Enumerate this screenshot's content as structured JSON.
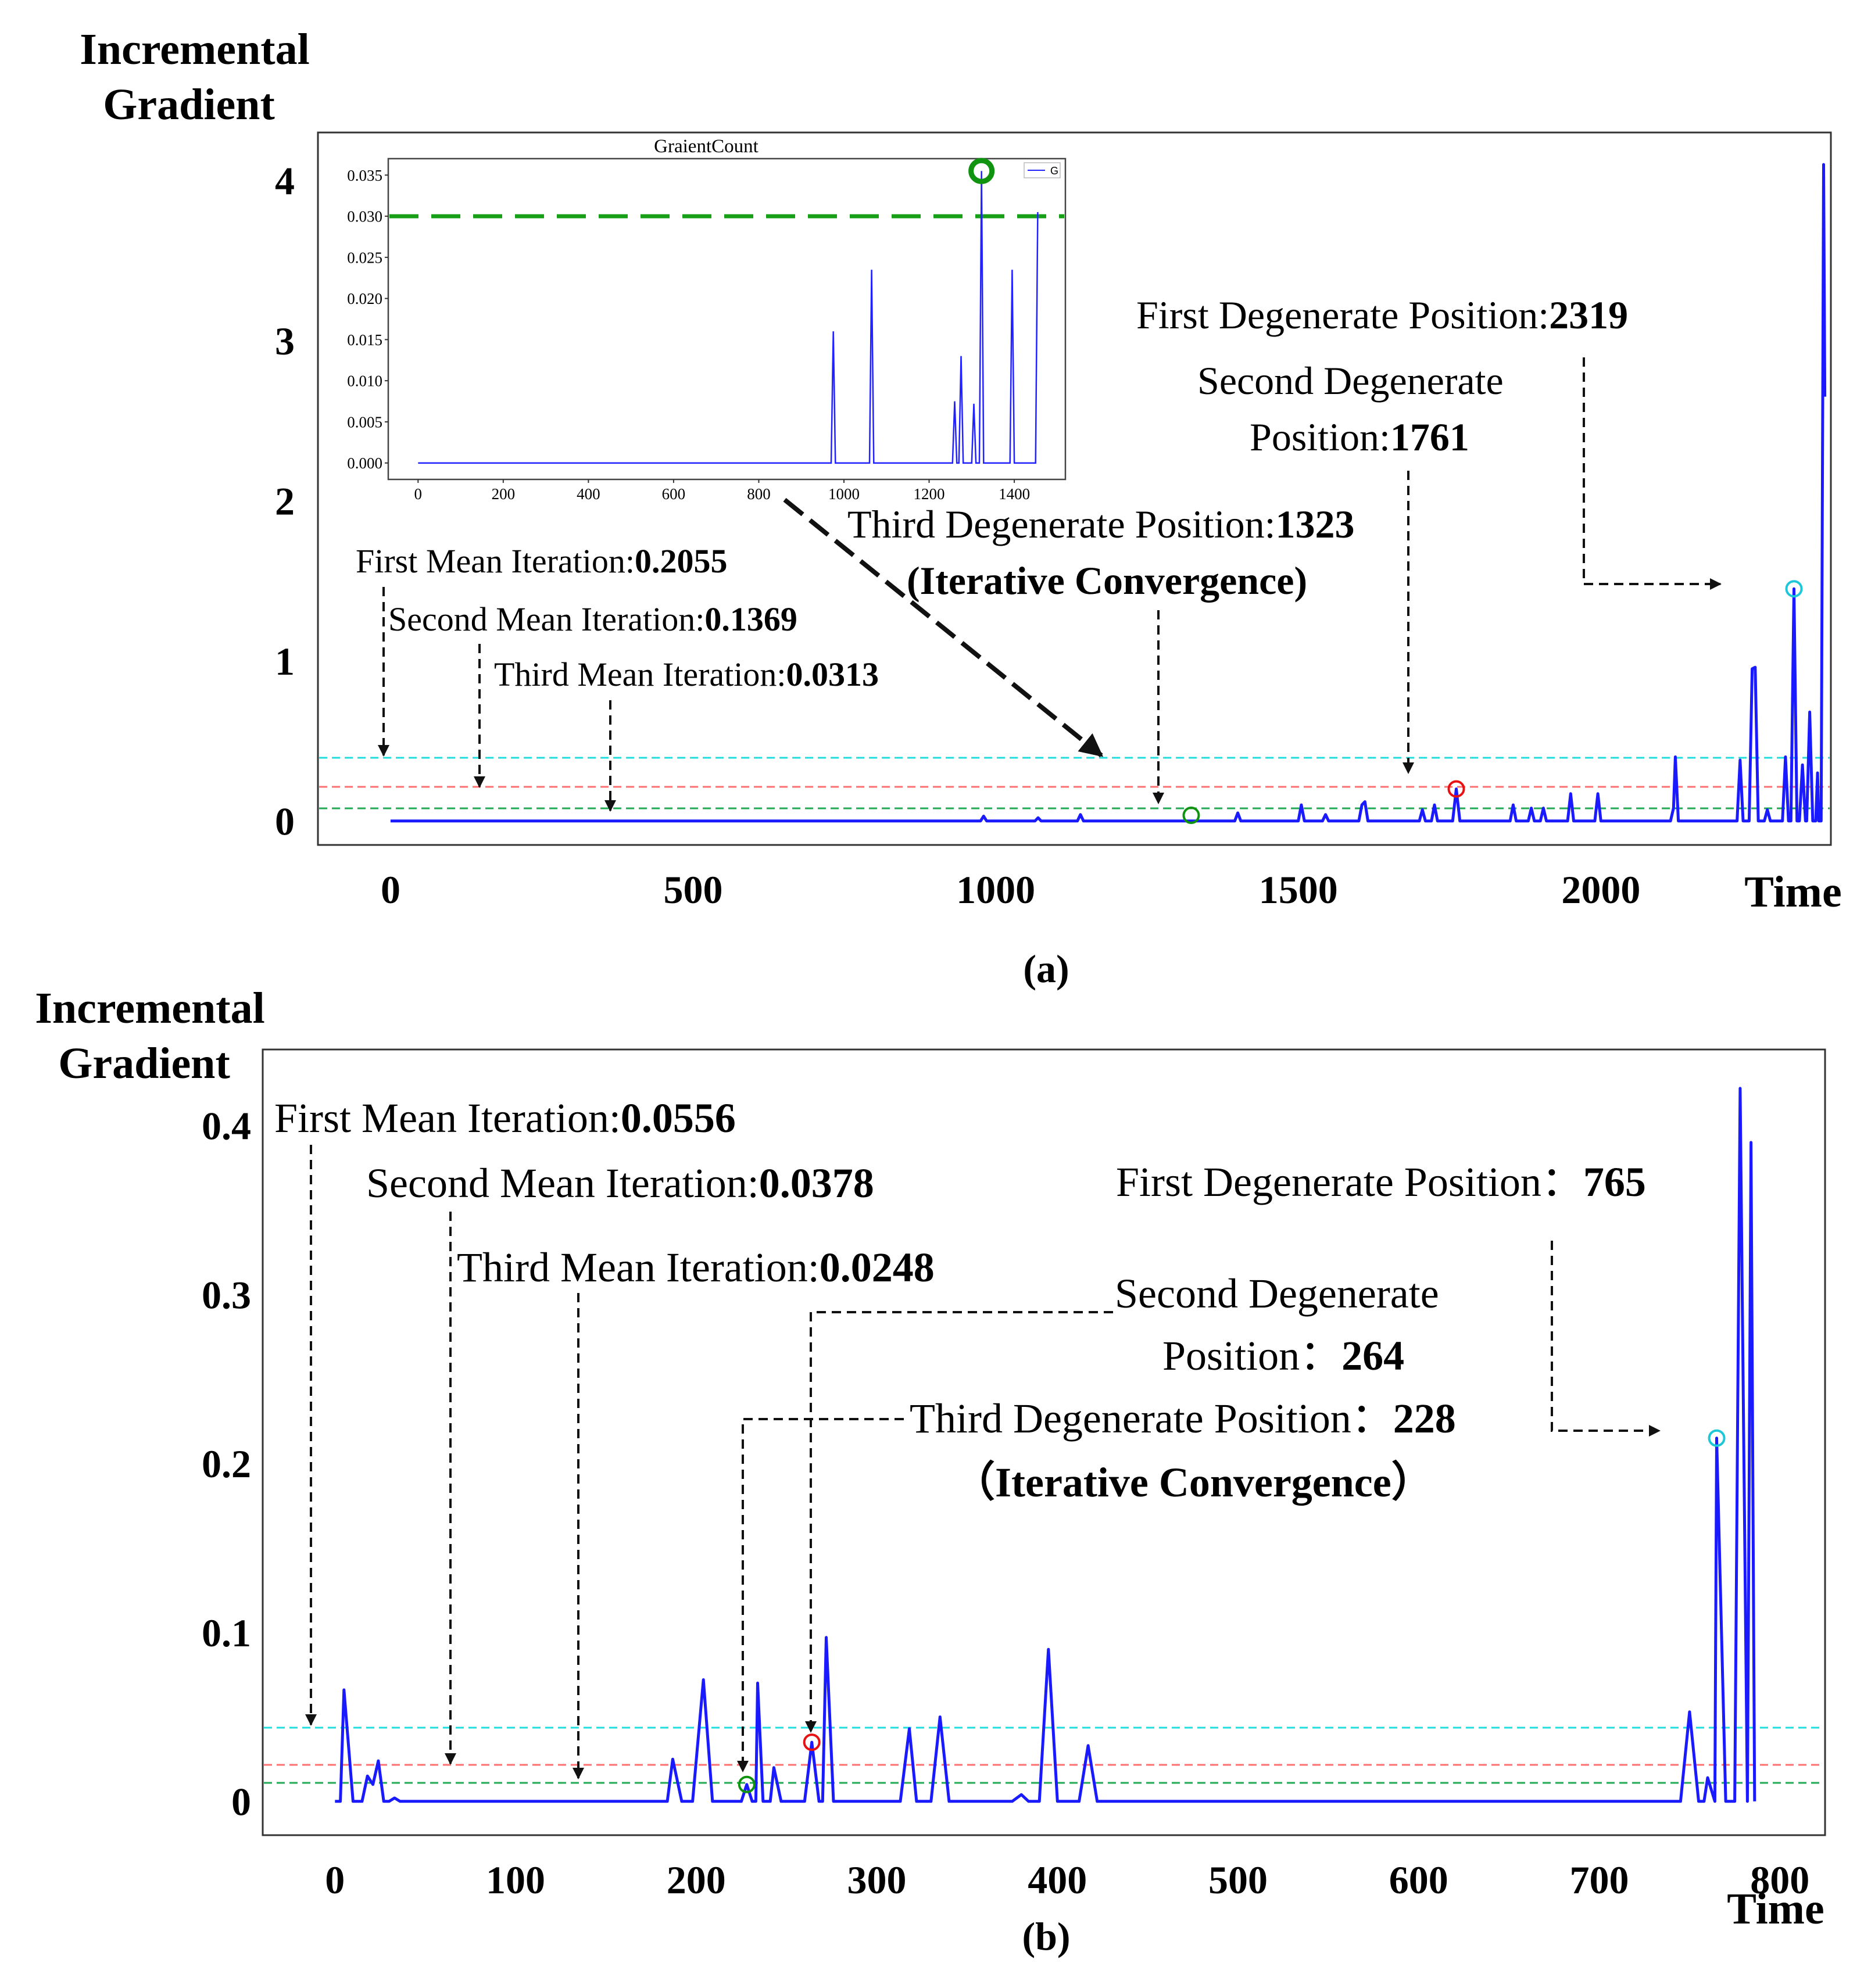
{
  "panel_a": {
    "ylabel_line1": "Incremental",
    "ylabel_line2": "Gradient",
    "xlabel": "Time",
    "caption": "(a)",
    "annotations": {
      "first_degenerate": {
        "label": "First Degenerate Position:",
        "value": "2319"
      },
      "second_degenerate_l1": "Second Degenerate",
      "second_degenerate_l2": {
        "label": "Position:",
        "value": "1761"
      },
      "third_degenerate": {
        "label": "Third Degenerate Position:",
        "value": "1323"
      },
      "iterative_convergence": "(Iterative Convergence)",
      "first_mean": {
        "label": "First Mean Iteration:",
        "value": "0.2055"
      },
      "second_mean": {
        "label": "Second Mean Iteration:",
        "value": "0.1369"
      },
      "third_mean": {
        "label": "Third Mean Iteration:",
        "value": "0.0313"
      }
    },
    "inset": {
      "title": "GraientCount",
      "legend": "G"
    }
  },
  "panel_b": {
    "ylabel_line1": "Incremental",
    "ylabel_line2": "Gradient",
    "xlabel": "Time",
    "caption": "(b)",
    "annotations": {
      "first_mean": {
        "label": "First Mean Iteration:",
        "value": "0.0556"
      },
      "second_mean": {
        "label": "Second Mean Iteration:",
        "value": "0.0378"
      },
      "third_mean": {
        "label": "Third Mean Iteration:",
        "value": "0.0248"
      },
      "first_degenerate": {
        "label": "First Degenerate Position：",
        "value": "765"
      },
      "second_degenerate_l1": "Second Degenerate",
      "second_degenerate_l2": {
        "label": "Position：",
        "value": "264"
      },
      "third_degenerate": {
        "label": "Third Degenerate Position：",
        "value": "228"
      },
      "iterative_convergence": "（Iterative Convergence）"
    }
  },
  "colors": {
    "series": "#1a1aff",
    "cyan_line": "#22dddd",
    "red_line": "#ff7070",
    "green_line": "#22aa55",
    "inset_threshold": "#17a017",
    "marker_cyan": "#1cc8d8",
    "marker_red": "#e81010",
    "marker_green": "#109410"
  },
  "chart_data": [
    {
      "id": "a",
      "type": "line",
      "xlabel": "Time",
      "ylabel": "Incremental Gradient",
      "xlim": [
        -120,
        2380
      ],
      "ylim": [
        -0.15,
        4.3
      ],
      "xticks": [
        0,
        500,
        1000,
        1500,
        2000
      ],
      "yticks": [
        0,
        1,
        2,
        3,
        4
      ],
      "hlines": {
        "cyan": 0.37,
        "red": 0.19,
        "green": 0.05
      },
      "series": [
        {
          "points": [
            [
              0,
              0
            ],
            [
              975,
              0
            ],
            [
              980,
              0.03
            ],
            [
              985,
              0
            ],
            [
              1065,
              0
            ],
            [
              1070,
              0.02
            ],
            [
              1075,
              0
            ],
            [
              1135,
              0
            ],
            [
              1140,
              0.04
            ],
            [
              1145,
              0
            ],
            [
              1395,
              0
            ],
            [
              1400,
              0.05
            ],
            [
              1405,
              0
            ],
            [
              1500,
              0
            ],
            [
              1505,
              0.1
            ],
            [
              1510,
              0
            ],
            [
              1540,
              0
            ],
            [
              1545,
              0.04
            ],
            [
              1550,
              0
            ],
            [
              1600,
              0
            ],
            [
              1605,
              0.1
            ],
            [
              1610,
              0.12
            ],
            [
              1615,
              0
            ],
            [
              1700,
              0
            ],
            [
              1705,
              0.07
            ],
            [
              1710,
              0
            ],
            [
              1720,
              0
            ],
            [
              1725,
              0.1
            ],
            [
              1730,
              0
            ],
            [
              1755,
              0
            ],
            [
              1761,
              0.2
            ],
            [
              1767,
              0
            ],
            [
              1850,
              0
            ],
            [
              1855,
              0.1
            ],
            [
              1860,
              0
            ],
            [
              1880,
              0
            ],
            [
              1885,
              0.08
            ],
            [
              1890,
              0
            ],
            [
              1900,
              0
            ],
            [
              1905,
              0.08
            ],
            [
              1910,
              0
            ],
            [
              1945,
              0
            ],
            [
              1950,
              0.17
            ],
            [
              1955,
              0
            ],
            [
              1990,
              0
            ],
            [
              1995,
              0.17
            ],
            [
              2000,
              0
            ],
            [
              2115,
              0
            ],
            [
              2120,
              0.08
            ],
            [
              2123,
              0.4
            ],
            [
              2128,
              0
            ],
            [
              2225,
              0
            ],
            [
              2230,
              0.38
            ],
            [
              2235,
              0
            ],
            [
              2245,
              0
            ],
            [
              2250,
              0.95
            ],
            [
              2255,
              0.96
            ],
            [
              2260,
              0
            ],
            [
              2270,
              0
            ],
            [
              2275,
              0.07
            ],
            [
              2280,
              0
            ],
            [
              2300,
              0
            ],
            [
              2305,
              0.4
            ],
            [
              2310,
              0
            ],
            [
              2314,
              0
            ],
            [
              2319,
              1.45
            ],
            [
              2324,
              0
            ],
            [
              2328,
              0
            ],
            [
              2333,
              0.35
            ],
            [
              2338,
              0
            ],
            [
              2340,
              0
            ],
            [
              2345,
              0.68
            ],
            [
              2350,
              0
            ],
            [
              2355,
              0
            ],
            [
              2358,
              0.3
            ],
            [
              2360,
              0
            ],
            [
              2364,
              0
            ],
            [
              2368,
              4.1
            ],
            [
              2370,
              2.65
            ]
          ]
        }
      ],
      "markers": [
        {
          "x": 2319,
          "y": 1.45,
          "color": "cyan"
        },
        {
          "x": 1761,
          "y": 0.2,
          "color": "red"
        },
        {
          "x": 1323,
          "y": 0.035,
          "color": "green"
        }
      ]
    },
    {
      "id": "a_inset",
      "type": "line",
      "title": "GraientCount",
      "legend": [
        "G"
      ],
      "xlim": [
        -70,
        1520
      ],
      "ylim": [
        -0.002,
        0.037
      ],
      "xticks": [
        0,
        200,
        400,
        600,
        800,
        1000,
        1200,
        1400
      ],
      "yticks": [
        0.0,
        0.005,
        0.01,
        0.015,
        0.02,
        0.025,
        0.03,
        0.035
      ],
      "ytick_labels": [
        "0.000",
        "0.005",
        "0.010",
        "0.015",
        "0.020",
        "0.025",
        "0.030",
        "0.035"
      ],
      "hline": 0.03,
      "series": [
        {
          "name": "G",
          "points": [
            [
              0,
              0
            ],
            [
              970,
              0
            ],
            [
              975,
              0.016
            ],
            [
              980,
              0
            ],
            [
              1060,
              0
            ],
            [
              1065,
              0.0235
            ],
            [
              1070,
              0
            ],
            [
              1255,
              0
            ],
            [
              1260,
              0.0075
            ],
            [
              1265,
              0
            ],
            [
              1270,
              0
            ],
            [
              1275,
              0.013
            ],
            [
              1280,
              0
            ],
            [
              1300,
              0
            ],
            [
              1305,
              0.0072
            ],
            [
              1310,
              0
            ],
            [
              1318,
              0
            ],
            [
              1323,
              0.0355
            ],
            [
              1328,
              0
            ],
            [
              1390,
              0
            ],
            [
              1395,
              0.0235
            ],
            [
              1400,
              0
            ],
            [
              1450,
              0
            ],
            [
              1455,
              0.0305
            ]
          ]
        }
      ],
      "markers": [
        {
          "x": 1323,
          "y": 0.0355,
          "color": "green"
        }
      ]
    },
    {
      "id": "b",
      "type": "line",
      "xlabel": "Time",
      "ylabel": "Incremental Gradient",
      "xlim": [
        -40,
        825
      ],
      "ylim": [
        -0.02,
        0.445
      ],
      "xticks": [
        0,
        100,
        200,
        300,
        400,
        500,
        600,
        700,
        800
      ],
      "yticks": [
        0,
        0.1,
        0.2,
        0.3,
        0.4
      ],
      "ytick_labels": [
        "0",
        "0.1",
        "0.2",
        "0.3",
        "0.4"
      ],
      "hlines": {
        "cyan": 0.0425,
        "red": 0.021,
        "green": 0.01
      },
      "series": [
        {
          "points": [
            [
              0,
              0
            ],
            [
              3,
              0
            ],
            [
              5,
              0.066
            ],
            [
              10,
              0
            ],
            [
              15,
              0
            ],
            [
              18,
              0.015
            ],
            [
              21,
              0.01
            ],
            [
              24,
              0.024
            ],
            [
              27,
              0
            ],
            [
              30,
              0
            ],
            [
              33,
              0.002
            ],
            [
              36,
              0
            ],
            [
              184,
              0
            ],
            [
              187,
              0.025
            ],
            [
              192,
              0
            ],
            [
              198,
              0
            ],
            [
              204,
              0.072
            ],
            [
              209,
              0
            ],
            [
              225,
              0
            ],
            [
              228,
              0.01
            ],
            [
              231,
              0
            ],
            [
              233,
              0
            ],
            [
              234,
              0.07
            ],
            [
              237,
              0
            ],
            [
              241,
              0
            ],
            [
              243,
              0.02
            ],
            [
              247,
              0
            ],
            [
              260,
              0
            ],
            [
              264,
              0.035
            ],
            [
              268,
              0
            ],
            [
              270,
              0
            ],
            [
              272,
              0.097
            ],
            [
              276,
              0
            ],
            [
              313,
              0
            ],
            [
              318,
              0.043
            ],
            [
              322,
              0
            ],
            [
              330,
              0
            ],
            [
              335,
              0.05
            ],
            [
              340,
              0
            ],
            [
              375,
              0
            ],
            [
              380,
              0.004
            ],
            [
              384,
              0
            ],
            [
              390,
              0
            ],
            [
              395,
              0.09
            ],
            [
              400,
              0
            ],
            [
              412,
              0
            ],
            [
              417,
              0.033
            ],
            [
              422,
              0
            ],
            [
              745,
              0
            ],
            [
              750,
              0.053
            ],
            [
              755,
              0
            ],
            [
              758,
              0
            ],
            [
              760,
              0.014
            ],
            [
              764,
              0
            ],
            [
              765,
              0.215
            ],
            [
              770,
              0
            ],
            [
              775,
              0
            ],
            [
              778,
              0.422
            ],
            [
              782,
              0
            ],
            [
              784,
              0.39
            ],
            [
              786,
              0
            ]
          ]
        }
      ],
      "markers": [
        {
          "x": 765,
          "y": 0.215,
          "color": "cyan"
        },
        {
          "x": 264,
          "y": 0.035,
          "color": "red"
        },
        {
          "x": 228,
          "y": 0.01,
          "color": "green"
        }
      ]
    }
  ]
}
